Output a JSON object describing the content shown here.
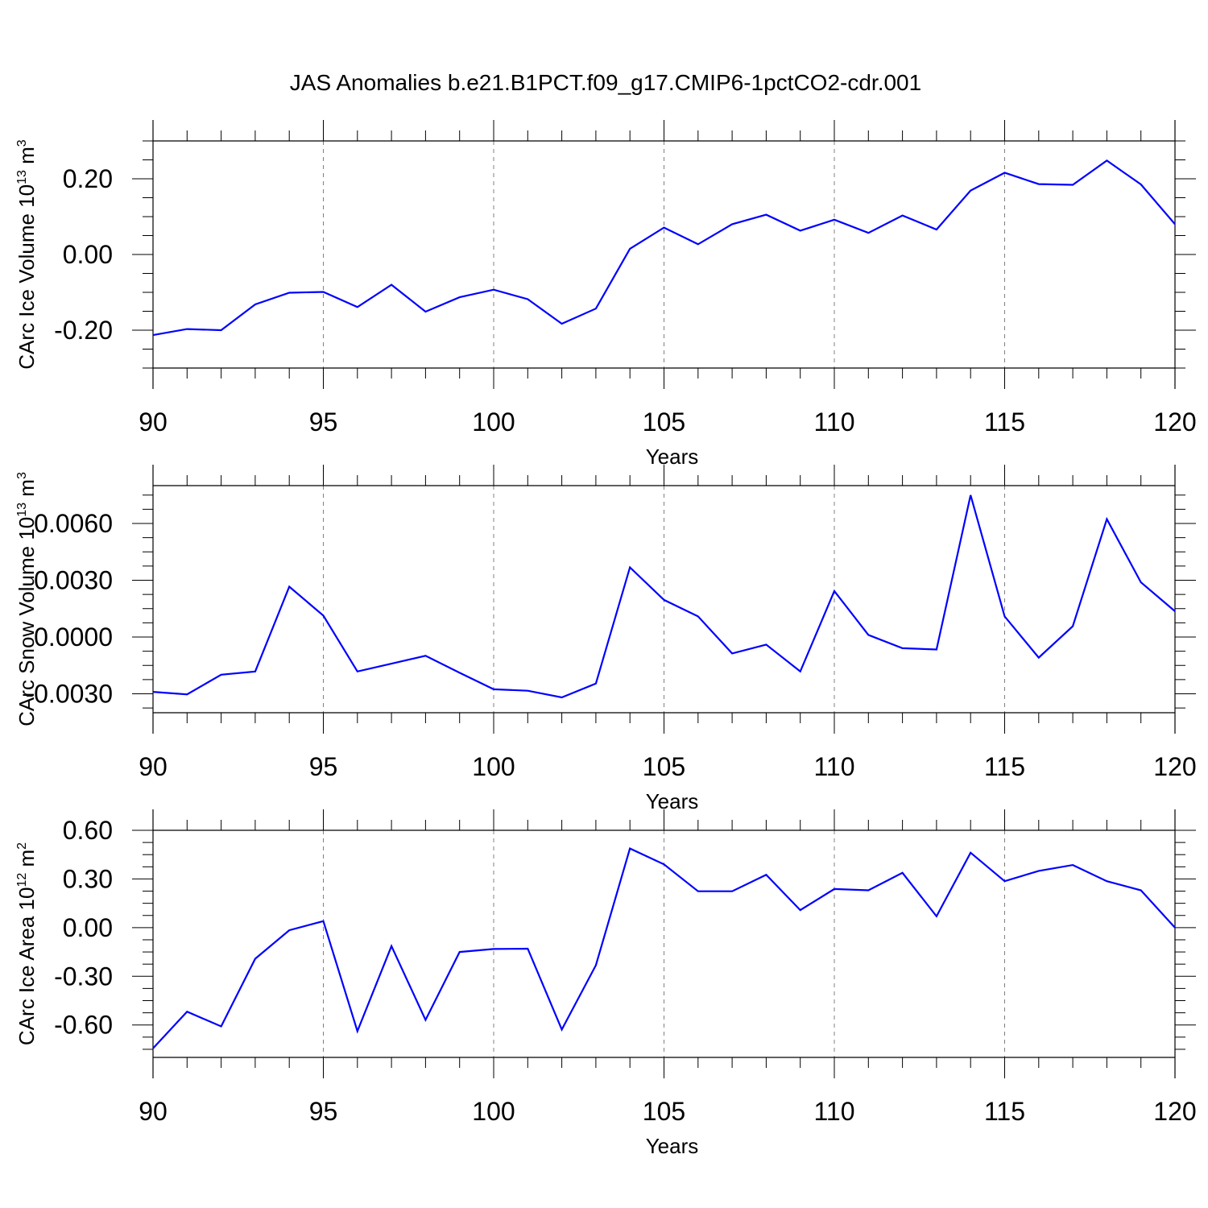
{
  "title": "JAS Anomalies b.e21.B1PCT.f09_g17.CMIP6-1pctCO2-cdr.001",
  "colors": {
    "line": "#0000ff",
    "axis": "#000000",
    "grid": "#808080"
  },
  "chart_data": [
    {
      "type": "line",
      "xlabel": "Years",
      "ylabel": {
        "text": "CArc Ice Volume 10",
        "sup1": "13",
        "mid": " m",
        "sup2": "3"
      },
      "xlim": [
        90,
        120
      ],
      "ylim": [
        -0.3,
        0.3
      ],
      "xticks": [
        "90",
        "95",
        "100",
        "105",
        "110",
        "115",
        "120"
      ],
      "yticks": [
        "-0.20",
        "0.00",
        "0.20"
      ],
      "ytick_values": [
        -0.2,
        0.0,
        0.2
      ],
      "grid": "vertical dashed at major x ticks",
      "x": [
        90,
        91,
        92,
        93,
        94,
        95,
        96,
        97,
        98,
        99,
        100,
        101,
        102,
        103,
        104,
        105,
        106,
        107,
        108,
        109,
        110,
        111,
        112,
        113,
        114,
        115,
        116,
        117,
        118,
        119,
        120
      ],
      "y": [
        -0.213,
        -0.197,
        -0.2,
        -0.132,
        -0.101,
        -0.099,
        -0.139,
        -0.08,
        -0.151,
        -0.113,
        -0.093,
        -0.118,
        -0.183,
        -0.143,
        0.015,
        0.071,
        0.027,
        0.08,
        0.105,
        0.063,
        0.092,
        0.057,
        0.103,
        0.066,
        0.169,
        0.216,
        0.186,
        0.184,
        0.248,
        0.185,
        0.08
      ]
    },
    {
      "type": "line",
      "xlabel": "Years",
      "ylabel": {
        "text": "CArc Snow Volume 10",
        "sup1": "13",
        "mid": " m",
        "sup2": "3"
      },
      "xlim": [
        90,
        120
      ],
      "ylim": [
        -0.004,
        0.008
      ],
      "xticks": [
        "90",
        "95",
        "100",
        "105",
        "110",
        "115",
        "120"
      ],
      "yticks": [
        "-0.0030",
        "0.0000",
        "0.0030",
        "0.0060"
      ],
      "ytick_values": [
        -0.003,
        0.0,
        0.003,
        0.006
      ],
      "grid": "vertical dashed at major x ticks",
      "x": [
        90,
        91,
        92,
        93,
        94,
        95,
        96,
        97,
        98,
        99,
        100,
        101,
        102,
        103,
        104,
        105,
        106,
        107,
        108,
        109,
        110,
        111,
        112,
        113,
        114,
        115,
        116,
        117,
        118,
        119,
        120
      ],
      "y": [
        -0.0029,
        -0.00303,
        -0.00199,
        -0.00182,
        0.00266,
        0.00113,
        -0.00182,
        -0.00141,
        -0.00099,
        -0.00189,
        -0.00276,
        -0.00284,
        -0.00319,
        -0.00246,
        0.00368,
        0.00196,
        0.00109,
        -0.00087,
        -0.0004,
        -0.00182,
        0.00243,
        0.00011,
        -0.00059,
        -0.00066,
        0.0075,
        0.00109,
        -0.00109,
        0.00057,
        0.00623,
        0.00289,
        0.00136
      ]
    },
    {
      "type": "line",
      "xlabel": "Years",
      "ylabel": {
        "text": "CArc Ice Area 10",
        "sup1": "12",
        "mid": " m",
        "sup2": "2"
      },
      "xlim": [
        90,
        120
      ],
      "ylim": [
        -0.8,
        0.6
      ],
      "xticks": [
        "90",
        "95",
        "100",
        "105",
        "110",
        "115",
        "120"
      ],
      "yticks": [
        "-0.60",
        "-0.30",
        "0.00",
        "0.30",
        "0.60"
      ],
      "ytick_values": [
        -0.6,
        -0.3,
        0.0,
        0.3,
        0.6
      ],
      "grid": "vertical dashed at major x ticks",
      "x": [
        90,
        91,
        92,
        93,
        94,
        95,
        96,
        97,
        98,
        99,
        100,
        101,
        102,
        103,
        104,
        105,
        106,
        107,
        108,
        109,
        110,
        111,
        112,
        113,
        114,
        115,
        116,
        117,
        118,
        119,
        120
      ],
      "y": [
        -0.744,
        -0.518,
        -0.609,
        -0.192,
        -0.016,
        0.04,
        -0.638,
        -0.114,
        -0.569,
        -0.15,
        -0.132,
        -0.13,
        -0.628,
        -0.232,
        0.488,
        0.39,
        0.224,
        0.224,
        0.326,
        0.108,
        0.238,
        0.23,
        0.338,
        0.07,
        0.462,
        0.286,
        0.35,
        0.386,
        0.286,
        0.23,
        0.0
      ]
    }
  ]
}
